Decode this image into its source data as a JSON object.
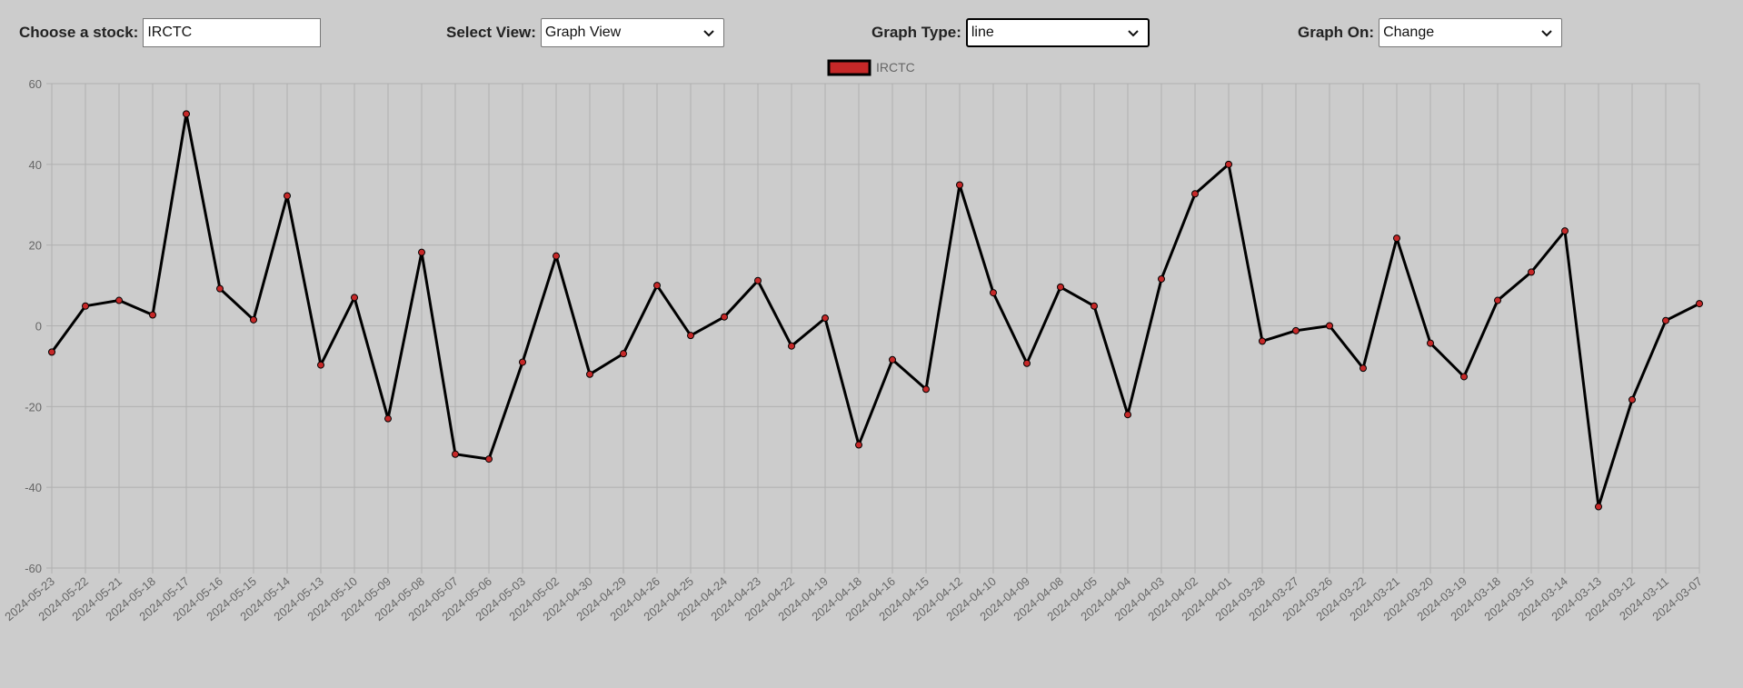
{
  "controls": {
    "stock_label": "Choose a stock:",
    "stock_value": "IRCTC",
    "view_label": "Select View:",
    "view_value": "Graph View",
    "type_label": "Graph Type:",
    "type_value": "line",
    "on_label": "Graph On:",
    "on_value": "Change",
    "chevron_icon": "chevron-down-icon"
  },
  "chart_data": {
    "type": "line",
    "title": "",
    "xlabel": "",
    "ylabel": "",
    "ylim": [
      -60,
      60
    ],
    "yticks": [
      60,
      40,
      20,
      0,
      -20,
      -40,
      -60
    ],
    "grid": true,
    "legend_position": "top-center",
    "line_color": "#000000",
    "point_color": "#c62828",
    "categories": [
      "2024-05-23",
      "2024-05-22",
      "2024-05-21",
      "2024-05-18",
      "2024-05-17",
      "2024-05-16",
      "2024-05-15",
      "2024-05-14",
      "2024-05-13",
      "2024-05-10",
      "2024-05-09",
      "2024-05-08",
      "2024-05-07",
      "2024-05-06",
      "2024-05-03",
      "2024-05-02",
      "2024-04-30",
      "2024-04-29",
      "2024-04-26",
      "2024-04-25",
      "2024-04-24",
      "2024-04-23",
      "2024-04-22",
      "2024-04-19",
      "2024-04-18",
      "2024-04-16",
      "2024-04-15",
      "2024-04-12",
      "2024-04-10",
      "2024-04-09",
      "2024-04-08",
      "2024-04-05",
      "2024-04-04",
      "2024-04-03",
      "2024-04-02",
      "2024-04-01",
      "2024-03-28",
      "2024-03-27",
      "2024-03-26",
      "2024-03-22",
      "2024-03-21",
      "2024-03-20",
      "2024-03-19",
      "2024-03-18",
      "2024-03-15",
      "2024-03-14",
      "2024-03-13",
      "2024-03-12",
      "2024-03-11",
      "2024-03-07"
    ],
    "series": [
      {
        "name": "IRCTC",
        "values": [
          -6.5,
          4.9,
          6.3,
          2.7,
          52.5,
          9.2,
          1.5,
          32.2,
          -9.7,
          7.0,
          -23.0,
          18.2,
          -31.8,
          -33.0,
          -9.0,
          17.3,
          -12.0,
          -6.9,
          10.0,
          -2.4,
          2.2,
          11.2,
          -5.0,
          1.9,
          -29.5,
          -8.4,
          -15.7,
          34.9,
          8.2,
          -9.3,
          9.6,
          4.9,
          -22.0,
          11.6,
          32.7,
          40.0,
          -3.8,
          -1.2,
          0.0,
          -10.5,
          21.7,
          -4.3,
          -12.6,
          6.3,
          13.3,
          23.5,
          -44.8,
          -18.3,
          1.3,
          5.5
        ]
      }
    ]
  }
}
